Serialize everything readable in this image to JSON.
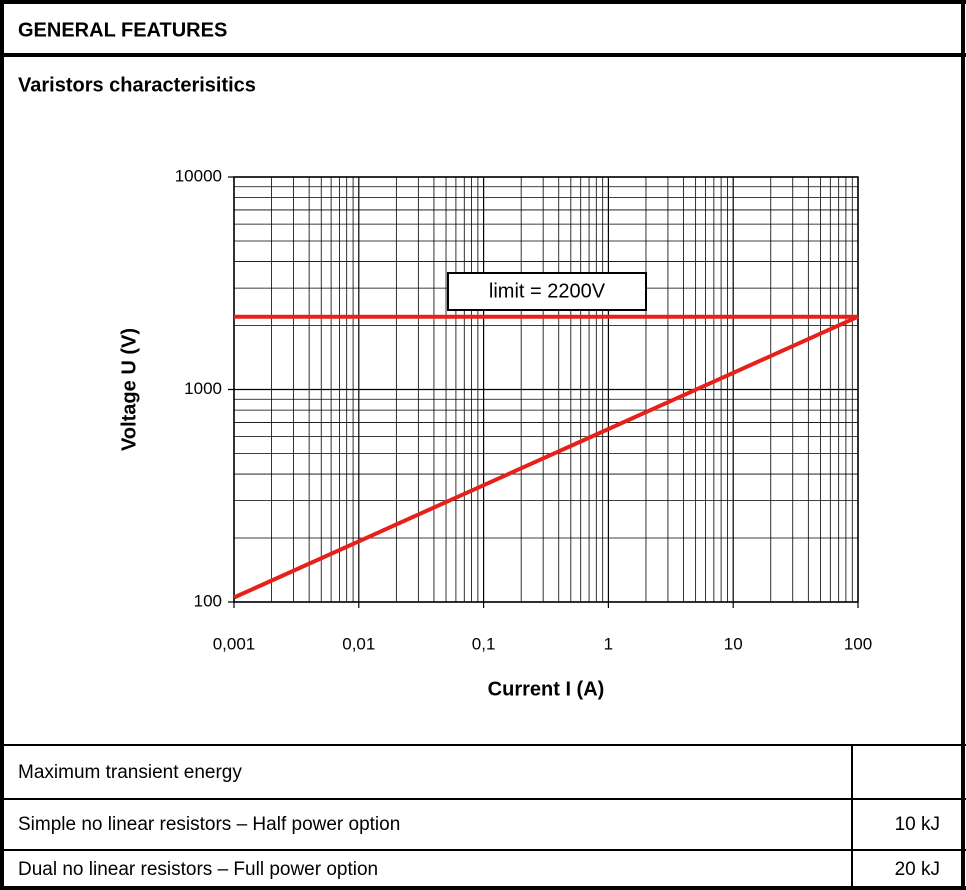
{
  "header": {
    "title": "GENERAL FEATURES",
    "subtitle": "Varistors characterisitics"
  },
  "chart_data": {
    "type": "line",
    "xlabel": "Current I (A)",
    "ylabel": "Voltage U (V)",
    "log_x": true,
    "log_y": true,
    "grid": true,
    "minor_grid": true,
    "xlim": [
      0.001,
      100
    ],
    "ylim": [
      100,
      10000
    ],
    "xticks": [
      {
        "value": 0.001,
        "label": "0,001"
      },
      {
        "value": 0.01,
        "label": "0,01"
      },
      {
        "value": 0.1,
        "label": "0,1"
      },
      1,
      10,
      100
    ],
    "yticks": [
      100,
      1000,
      10000
    ],
    "series": [
      {
        "color": "#e8201c",
        "x": [
          0.001,
          100
        ],
        "values": [
          2200,
          2200
        ]
      },
      {
        "color": "#e8201c",
        "x": [
          0.001,
          100
        ],
        "values": [
          105,
          2200
        ]
      }
    ],
    "annotations": [
      {
        "text": "limit = 2200V"
      }
    ]
  },
  "table": {
    "rows": [
      [
        "Maximum transient energy"
      ],
      [
        "Simple no linear resistors – Half power option",
        "10 kJ"
      ],
      [
        "Dual no linear resistors – Full power option",
        "20 kJ"
      ]
    ]
  }
}
